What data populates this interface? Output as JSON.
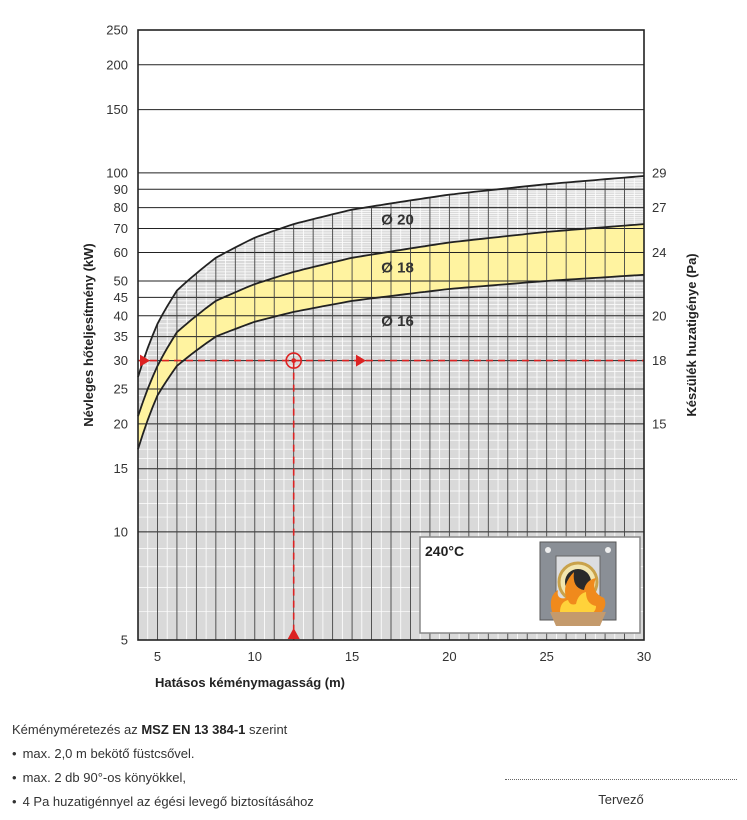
{
  "chart_data": {
    "type": "line",
    "x_axis": {
      "label": "Hatásos kéménymagasság (m)",
      "range": [
        4,
        30
      ],
      "ticks": [
        5,
        10,
        15,
        20,
        25,
        30
      ]
    },
    "y_axis_left": {
      "label": "Névleges hőteljesítmény (kW)",
      "scale": "log",
      "range": [
        5,
        250
      ],
      "ticks": [
        5,
        10,
        15,
        20,
        25,
        30,
        35,
        40,
        45,
        50,
        60,
        70,
        80,
        90,
        100,
        150,
        200,
        250
      ]
    },
    "y_axis_right": {
      "label": "Készülék huzatigénye (Pa)",
      "ticks": [
        {
          "value": 15,
          "at_kw": 20
        },
        {
          "value": 18,
          "at_kw": 30
        },
        {
          "value": 20,
          "at_kw": 40
        },
        {
          "value": 24,
          "at_kw": 60
        },
        {
          "value": 27,
          "at_kw": 80
        },
        {
          "value": 29,
          "at_kw": 100
        }
      ]
    },
    "series": [
      {
        "name": "Ø 20",
        "x": [
          4,
          5,
          6,
          8,
          10,
          12,
          15,
          20,
          25,
          30
        ],
        "y": [
          27,
          38,
          47,
          58,
          66,
          72,
          79,
          87,
          93,
          98
        ]
      },
      {
        "name": "Ø 18",
        "x": [
          4,
          5,
          6,
          8,
          10,
          12,
          15,
          20,
          25,
          30
        ],
        "y": [
          21,
          29,
          36,
          44,
          49,
          53,
          58,
          64,
          68.5,
          72
        ]
      },
      {
        "name": "Ø 16",
        "x": [
          4,
          5,
          6,
          8,
          10,
          12,
          15,
          20,
          25,
          30
        ],
        "y": [
          17,
          24,
          29,
          35,
          38.5,
          41,
          44,
          47.5,
          50,
          52
        ]
      }
    ],
    "example": {
      "power_kw": 30,
      "height_m": 12,
      "draught_pa": 18
    },
    "inset_label": "240°C"
  },
  "colors": {
    "grid_bg": "#d9d9d9",
    "band": "#fff3a0",
    "curve": "#222222",
    "marker": "#dd2222"
  },
  "notes": {
    "intro_prefix": "Kéményméretezés az ",
    "intro_standard": "MSZ EN 13 384-1",
    "intro_suffix": " szerint",
    "bullets": [
      "max. 2,0 m bekötő füstcsővel.",
      "max. 2 db 90°-os könyökkel,",
      "4 Pa huzatigénnyel az égési levegő biztosításához"
    ]
  },
  "signature": {
    "label": "Tervező"
  }
}
